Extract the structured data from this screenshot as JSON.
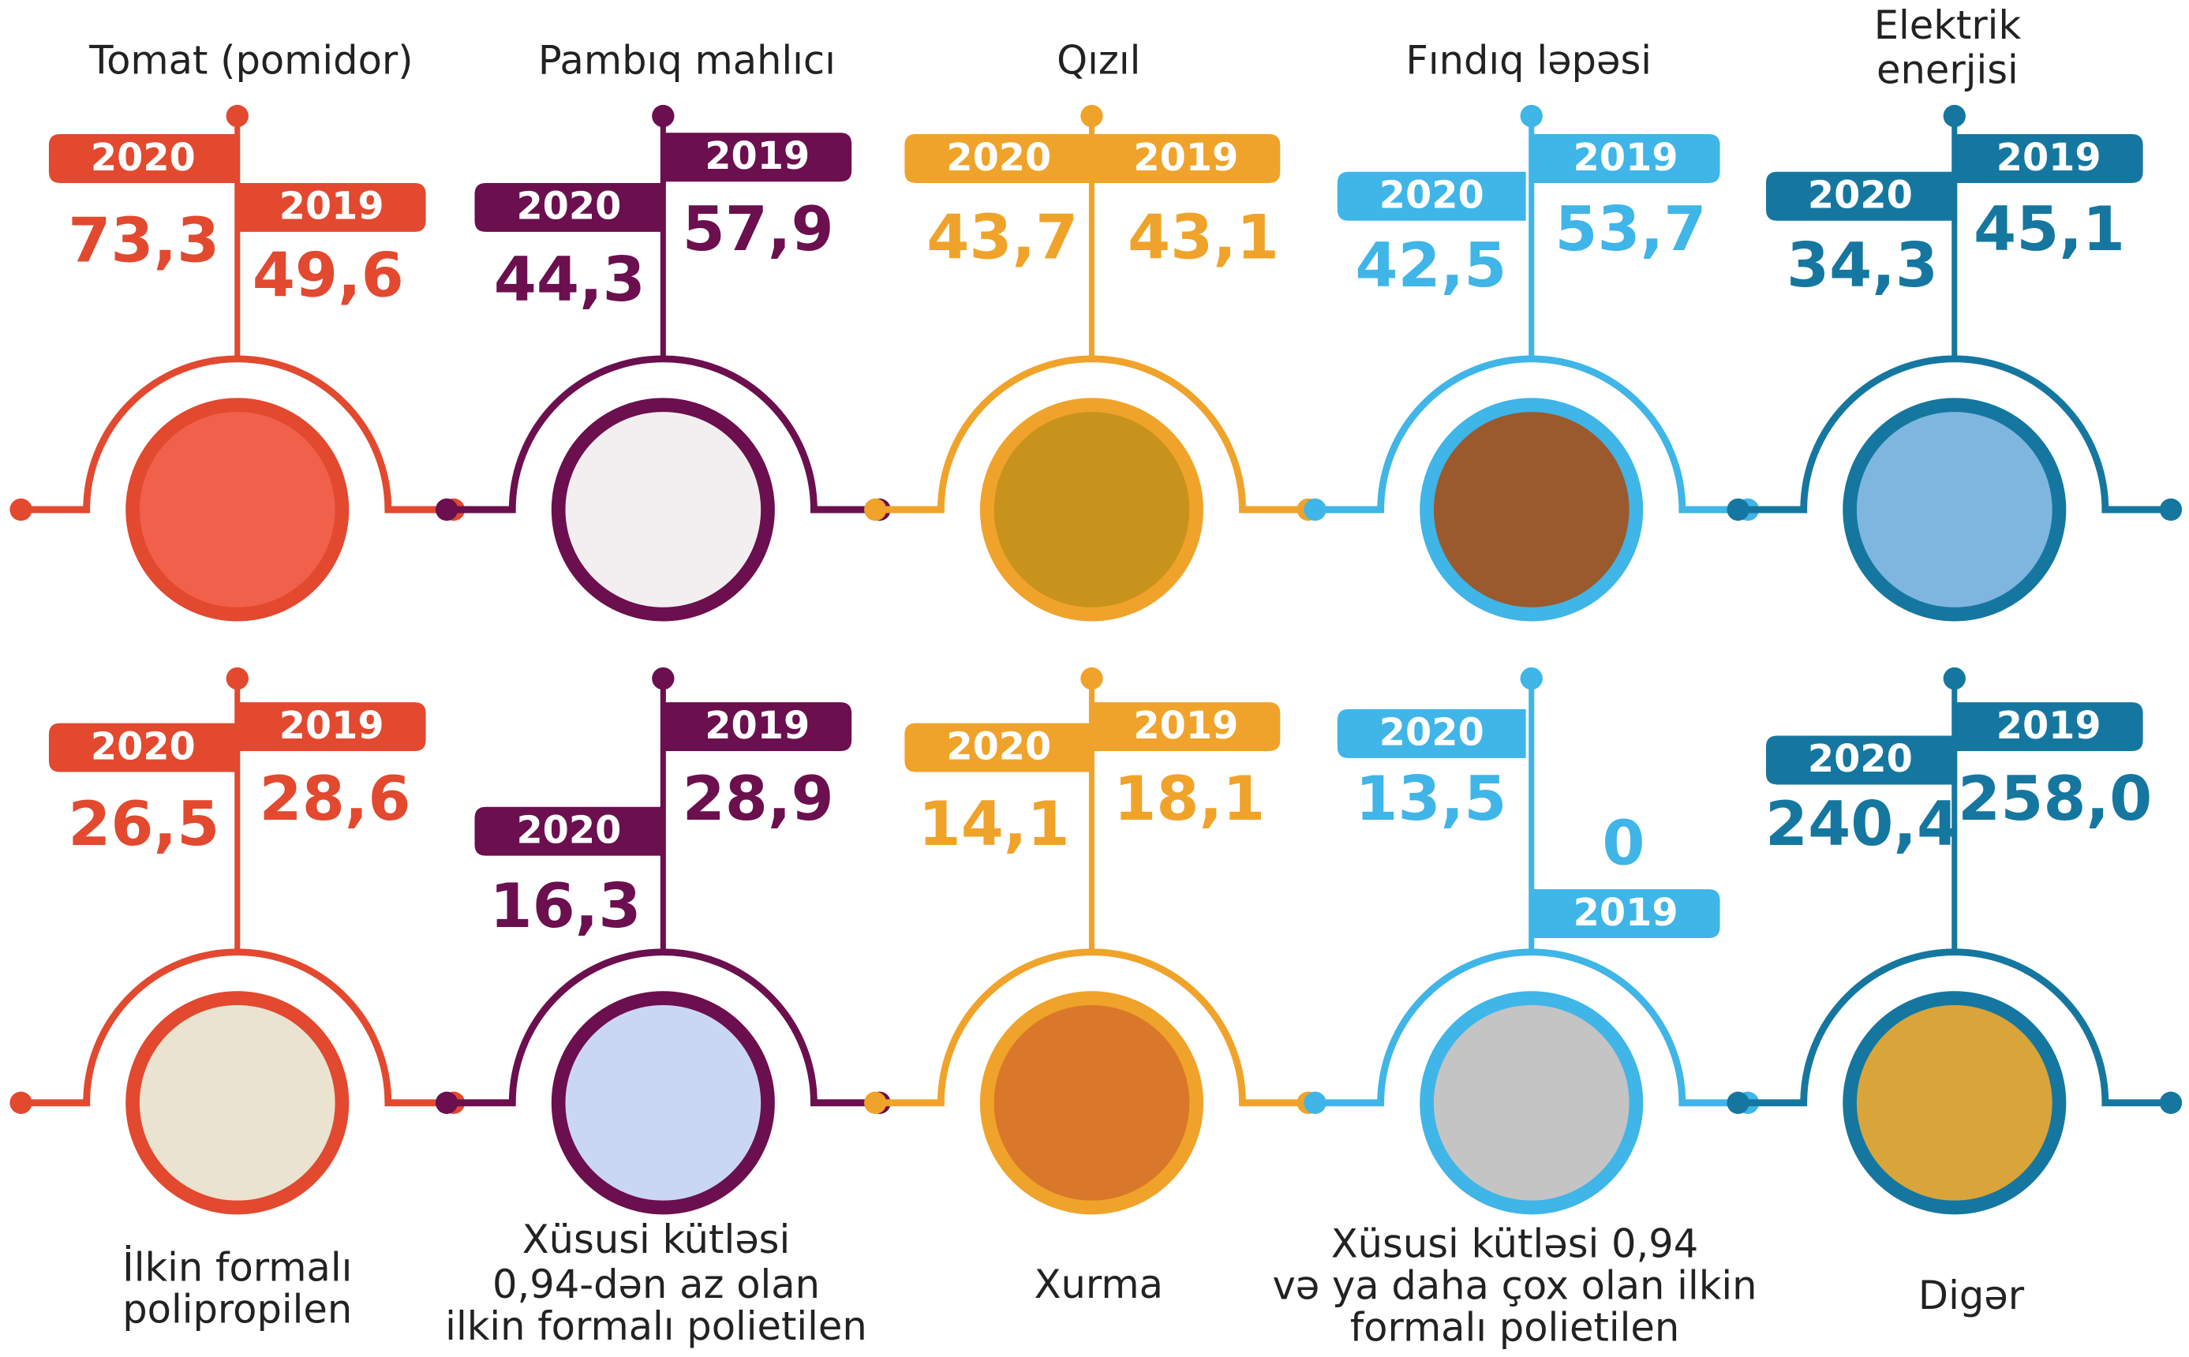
{
  "panels": [
    {
      "title": [
        "Tomat (pomidor)"
      ],
      "a": {
        "year": "2020",
        "value": "73,3"
      },
      "b": {
        "year": "2019",
        "value": "49,6"
      }
    },
    {
      "title": [
        "Pambıq mahlıcı"
      ],
      "a": {
        "year": "2020",
        "value": "44,3"
      },
      "b": {
        "year": "2019",
        "value": "57,9"
      }
    },
    {
      "title": [
        "Qızıl"
      ],
      "a": {
        "year": "2020",
        "value": "43,7"
      },
      "b": {
        "year": "2019",
        "value": "43,1"
      }
    },
    {
      "title": [
        "Fındıq ləpəsi"
      ],
      "a": {
        "year": "2020",
        "value": "42,5"
      },
      "b": {
        "year": "2019",
        "value": "53,7"
      }
    },
    {
      "title": [
        "Elektrik",
        "enerjisi"
      ],
      "a": {
        "year": "2020",
        "value": "34,3"
      },
      "b": {
        "year": "2019",
        "value": "45,1"
      }
    },
    {
      "title": [
        "İlkin formalı",
        "polipropilen"
      ],
      "a": {
        "year": "2020",
        "value": "26,5"
      },
      "b": {
        "year": "2019",
        "value": "28,6"
      }
    },
    {
      "title": [
        "Xüsusi kütləsi",
        "0,94-dən az olan",
        "ilkin formalı polietilen"
      ],
      "a": {
        "year": "2020",
        "value": "16,3"
      },
      "b": {
        "year": "2019",
        "value": "28,9"
      }
    },
    {
      "title": [
        "Xurma"
      ],
      "a": {
        "year": "2020",
        "value": "14,1"
      },
      "b": {
        "year": "2019",
        "value": "18,1"
      }
    },
    {
      "title": [
        "Xüsusi kütləsi 0,94",
        "və ya daha çox olan ilkin",
        "formalı polietilen"
      ],
      "a": {
        "year": "2020",
        "value": "13,5"
      },
      "b": {
        "year": "2019",
        "value": "0"
      }
    },
    {
      "title": [
        "Digər"
      ],
      "a": {
        "year": "2020",
        "value": "240,4"
      },
      "b": {
        "year": "2019",
        "value": "258,0"
      }
    }
  ]
}
